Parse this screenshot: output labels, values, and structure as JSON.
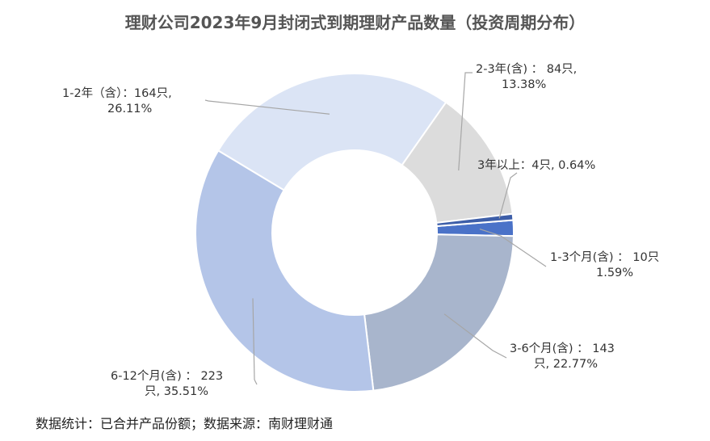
{
  "title": "理财公司2023年9月封闭式到期理财产品数量（投资周期分布）",
  "footer": "数据统计：已合并产品份额；数据来源：南财理财通",
  "chart_data": {
    "type": "pie",
    "variant": "doughnut",
    "title": "理财公司2023年9月封闭式到期理财产品数量（投资周期分布）",
    "unit": "只",
    "slices": [
      {
        "category": "1-3个月(含)",
        "value": 10,
        "percent": "1.59%",
        "color": "#4a72c8",
        "label_line1": "1-3个月(含) ： 10只",
        "label_line2": "1.59%"
      },
      {
        "category": "3-6个月(含)",
        "value": 143,
        "percent": "22.77%",
        "color": "#a8b5cc",
        "label_line1": "3-6个月(含) ： 143",
        "label_line2": "只, 22.77%"
      },
      {
        "category": "6-12个月(含)",
        "value": 223,
        "percent": "35.51%",
        "color": "#b4c5e8",
        "label_line1": "6-12个月(含) ： 223",
        "label_line2": "只, 35.51%"
      },
      {
        "category": "1-2年（含）",
        "value": 164,
        "percent": "26.11%",
        "color": "#dbe4f5",
        "label_line1": "1-2年（含）：164只,",
        "label_line2": "26.11%"
      },
      {
        "category": "2-3年(含)",
        "value": 84,
        "percent": "13.38%",
        "color": "#dcdcdc",
        "label_line1": "2-3年(含) ： 84只,",
        "label_line2": "13.38%"
      },
      {
        "category": "3年以上",
        "value": 4,
        "percent": "0.64%",
        "color": "#3d5ea8",
        "label_line1": "3年以上：4只, 0.64%",
        "label_line2": ""
      }
    ]
  }
}
